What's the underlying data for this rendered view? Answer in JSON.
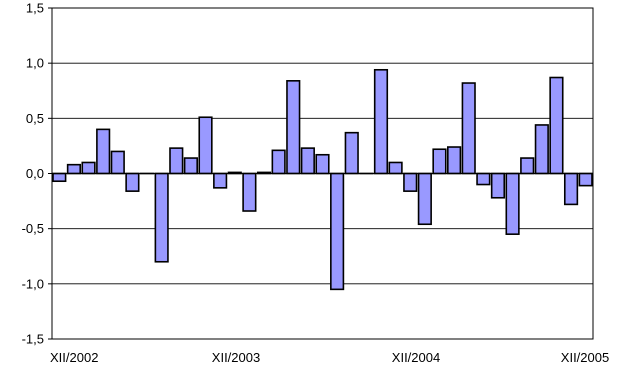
{
  "chart_data": {
    "type": "bar",
    "x_ticks": [
      "XII/2002",
      "XII/2003",
      "XII/2004",
      "XII/2005"
    ],
    "y_ticks": [
      "-1,5",
      "-1,0",
      "-0,5",
      "0,0",
      "0,5",
      "1,0",
      "1,5"
    ],
    "ylim": [
      -1.5,
      1.5
    ],
    "grid": true,
    "title": "",
    "xlabel": "",
    "ylabel": "",
    "values": [
      -0.07,
      0.08,
      0.1,
      0.4,
      0.2,
      -0.16,
      0.0,
      -0.8,
      0.23,
      0.14,
      0.51,
      -0.13,
      0.01,
      -0.34,
      0.01,
      0.21,
      0.84,
      0.23,
      0.17,
      -1.05,
      0.37,
      0.0,
      0.94,
      0.1,
      -0.16,
      -0.46,
      0.22,
      0.24,
      0.82,
      -0.1,
      -0.22,
      -0.55,
      0.14,
      0.44,
      0.87,
      -0.28,
      -0.11
    ],
    "bar_color": "#9999ff",
    "bar_edge_color": "#000000"
  }
}
